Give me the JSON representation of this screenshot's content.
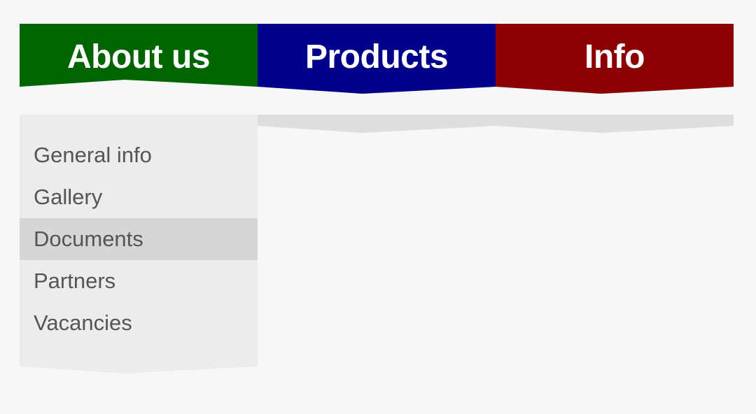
{
  "nav": {
    "tabs": [
      {
        "label": "About us",
        "color": "#006400"
      },
      {
        "label": "Products",
        "color": "#00008b"
      },
      {
        "label": "Info",
        "color": "#8b0000"
      }
    ]
  },
  "submenu": {
    "items": [
      {
        "label": "General info"
      },
      {
        "label": "Gallery"
      },
      {
        "label": "Documents",
        "active": true
      },
      {
        "label": "Partners"
      },
      {
        "label": "Vacancies"
      }
    ]
  },
  "colors": {
    "page_background": "#f7f7f7",
    "panel_background": "#ececec",
    "strip_background": "#dedede",
    "active_item_background": "#d6d6d6",
    "menu_text": "#555555",
    "tab_text": "#ffffff"
  }
}
